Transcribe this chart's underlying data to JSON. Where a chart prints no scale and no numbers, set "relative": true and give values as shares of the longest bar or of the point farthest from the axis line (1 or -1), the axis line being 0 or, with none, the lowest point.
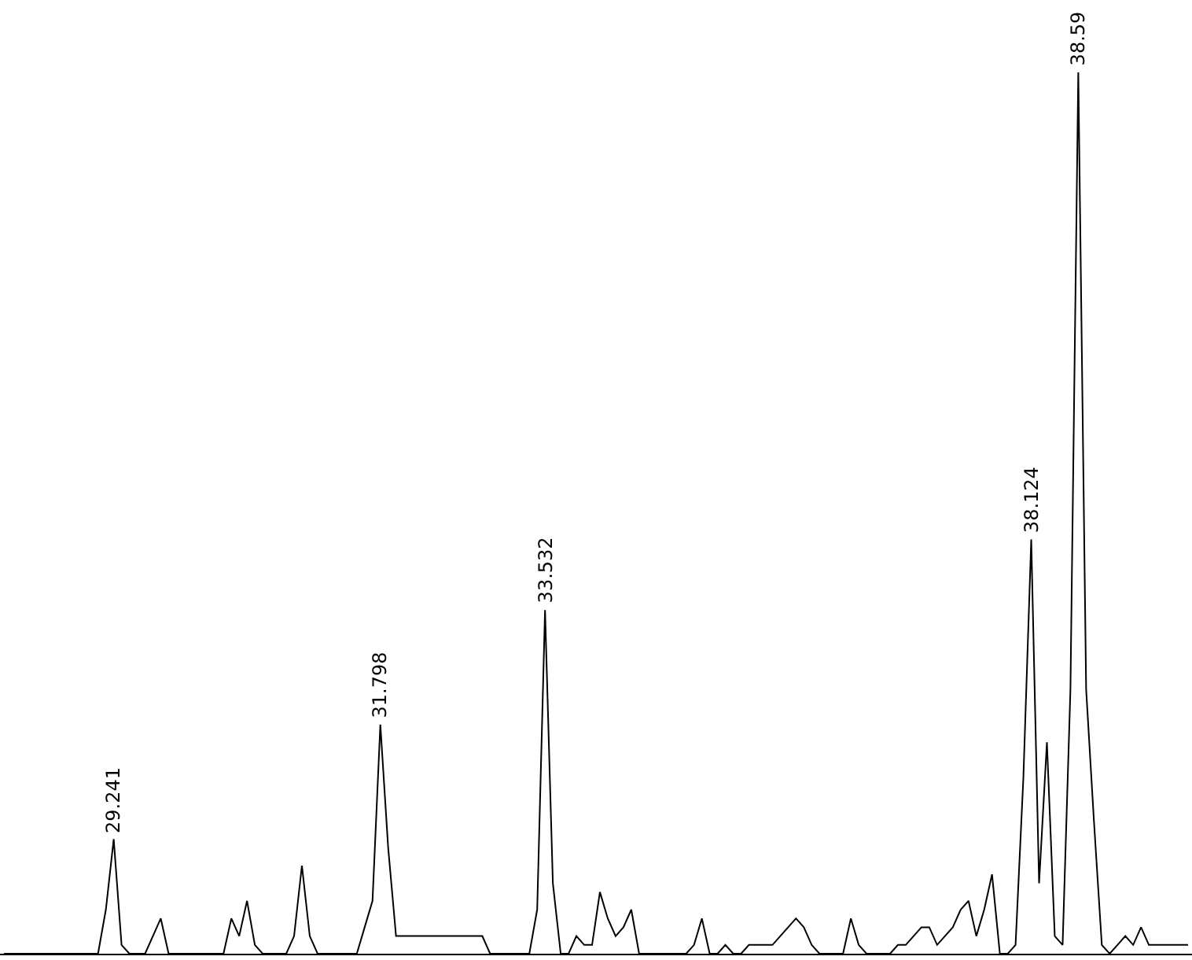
{
  "chart_data": {
    "type": "line",
    "relative": true,
    "tick_labels": false,
    "marker": "none",
    "line_style": "solid",
    "categories": [
      null,
      null,
      null,
      null,
      null,
      null,
      null,
      null,
      null,
      null,
      null,
      null,
      null,
      null,
      null,
      null,
      null,
      null,
      null,
      null,
      null,
      null,
      null,
      null,
      null,
      null,
      null,
      null,
      null,
      null,
      null,
      null,
      null,
      null,
      null,
      null,
      null,
      null,
      null,
      null,
      null,
      null,
      null,
      null,
      null,
      null,
      null,
      null,
      null,
      null,
      null,
      null,
      null,
      null,
      null,
      null,
      null,
      null,
      null,
      null,
      null,
      null,
      null,
      null,
      null,
      null,
      null,
      null,
      null,
      null,
      null,
      null,
      null,
      null,
      null,
      null,
      null,
      null,
      null,
      null,
      null,
      null,
      null,
      null,
      null,
      null,
      null,
      null,
      null,
      null,
      null,
      null,
      null,
      null,
      null,
      null,
      null,
      null,
      null,
      null,
      null,
      null,
      null,
      null,
      null,
      null,
      null,
      null,
      null,
      null,
      null,
      null,
      null,
      null,
      null,
      null,
      null,
      null,
      null,
      null,
      null,
      null,
      null,
      null,
      null,
      null,
      null,
      null,
      null,
      null,
      null,
      null,
      null,
      null,
      null,
      null,
      null,
      null,
      null,
      null,
      null,
      null,
      null,
      null,
      null,
      null,
      null,
      null,
      null,
      null,
      null,
      null
    ],
    "series": [
      {
        "color": "#000000",
        "values": [
          0,
          0,
          0,
          0,
          0,
          0,
          0,
          0,
          0,
          0,
          0,
          0,
          0,
          0.05,
          0.13,
          0.01,
          0,
          0,
          0,
          0.02,
          0.04,
          0,
          0,
          0,
          0,
          0,
          0,
          0,
          0,
          0.04,
          0.02,
          0.06,
          0.01,
          0,
          0,
          0,
          0,
          0.02,
          0.1,
          0.02,
          0,
          0,
          0,
          0,
          0,
          0,
          0.03,
          0.06,
          0.26,
          0.12,
          0.02,
          0.02,
          0.02,
          0.02,
          0.02,
          0.02,
          0.02,
          0.02,
          0.02,
          0.02,
          0.02,
          0.02,
          0,
          0,
          0,
          0,
          0,
          0,
          0.05,
          0.39,
          0.08,
          0,
          0,
          0.02,
          0.01,
          0.01,
          0.07,
          0.04,
          0.02,
          0.03,
          0.05,
          0,
          0,
          0,
          0,
          0,
          0,
          0,
          0.01,
          0.04,
          0,
          0,
          0.01,
          0,
          0,
          0.01,
          0.01,
          0.01,
          0.01,
          0.02,
          0.03,
          0.04,
          0.03,
          0.01,
          0,
          0,
          0,
          0,
          0.04,
          0.01,
          0,
          0,
          0,
          0,
          0.01,
          0.01,
          0.02,
          0.03,
          0.03,
          0.01,
          0.02,
          0.03,
          0.05,
          0.06,
          0.02,
          0.05,
          0.09,
          0,
          0,
          0.01,
          0.2,
          0.47,
          0.08,
          0.24,
          0.02,
          0.01,
          0.3,
          1,
          0.3,
          0.15,
          0.01,
          0,
          0.01,
          0.02,
          0.01,
          0.03,
          0.01,
          0.01,
          0.01,
          0.01,
          0.01,
          0.01
        ]
      }
    ],
    "annotations": [
      {
        "text": "29.241",
        "y": 0.13
      },
      {
        "text": "31.798",
        "y": 0.26
      },
      {
        "text": "33.532",
        "y": 0.39
      },
      {
        "text": "38.124",
        "y": 0.47
      },
      {
        "text": "38.59",
        "y": 1
      }
    ]
  }
}
